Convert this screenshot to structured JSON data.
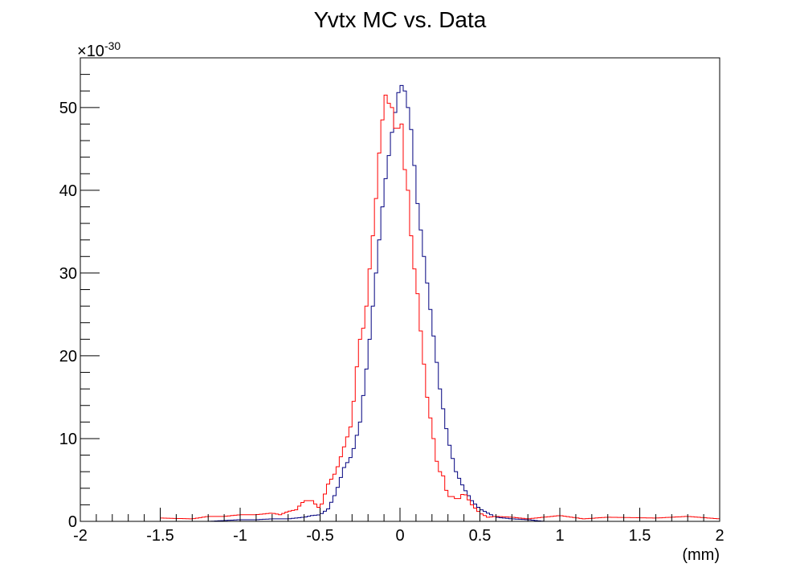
{
  "chart_data": {
    "type": "line",
    "title": "Yvtx MC vs. Data",
    "xlabel": "(mm)",
    "ylabel": "",
    "y_multiplier": "10",
    "y_multiplier_exp": "-30",
    "xlim": [
      -2,
      2
    ],
    "ylim": [
      0,
      56
    ],
    "grid": false,
    "x_ticks": [
      -2,
      -1.5,
      -1,
      -0.5,
      0,
      0.5,
      1,
      1.5,
      2
    ],
    "x_tick_labels": [
      "-2",
      "-1.5",
      "-1",
      "-0.5",
      "0",
      "0.5",
      "1",
      "1.5",
      "2"
    ],
    "y_ticks": [
      0,
      10,
      20,
      30,
      40,
      50
    ],
    "y_tick_labels": [
      "0",
      "10",
      "20",
      "30",
      "40",
      "50"
    ],
    "bin_width": 0.02,
    "series": [
      {
        "color": "#00007f",
        "x": [
          -1.2,
          -1.1,
          -1.0,
          -0.9,
          -0.8,
          -0.7,
          -0.65,
          -0.6,
          -0.55,
          -0.5,
          -0.45,
          -0.4,
          -0.35,
          -0.3,
          -0.25,
          -0.2,
          -0.15,
          -0.1,
          -0.05,
          0.0,
          0.03,
          0.05,
          0.08,
          0.1,
          0.15,
          0.2,
          0.25,
          0.3,
          0.35,
          0.4,
          0.45,
          0.5,
          0.55,
          0.6,
          0.7,
          0.8,
          0.9
        ],
        "values": [
          0,
          0.1,
          0.2,
          0.2,
          0.3,
          0.3,
          0.4,
          0.5,
          0.7,
          0.8,
          1.5,
          3.5,
          6.5,
          8,
          12,
          20,
          30,
          40,
          47,
          53,
          52,
          50,
          46,
          40,
          32,
          24,
          16,
          10,
          6,
          4,
          2.5,
          1.5,
          1,
          0.5,
          0.3,
          0.2,
          0
        ]
      },
      {
        "color": "#ff0000",
        "x": [
          -1.5,
          -1.3,
          -1.2,
          -1.1,
          -1.0,
          -0.9,
          -0.8,
          -0.75,
          -0.7,
          -0.65,
          -0.6,
          -0.55,
          -0.5,
          -0.45,
          -0.4,
          -0.35,
          -0.3,
          -0.28,
          -0.25,
          -0.22,
          -0.2,
          -0.18,
          -0.16,
          -0.14,
          -0.12,
          -0.1,
          -0.08,
          -0.06,
          -0.04,
          -0.02,
          0.0,
          0.02,
          0.04,
          0.06,
          0.08,
          0.1,
          0.12,
          0.14,
          0.16,
          0.18,
          0.2,
          0.22,
          0.24,
          0.26,
          0.28,
          0.3,
          0.32,
          0.34,
          0.36,
          0.4,
          0.45,
          0.5,
          0.55,
          0.6,
          0.7,
          0.8,
          1.0,
          1.15,
          1.3,
          1.6,
          1.8,
          2.0
        ],
        "values": [
          0.4,
          0.3,
          0.6,
          0.6,
          0.8,
          0.8,
          1.0,
          0.8,
          1.2,
          1.4,
          2.5,
          2.5,
          1.5,
          4.5,
          6,
          9,
          12,
          17,
          22,
          24,
          28,
          33,
          36,
          42,
          47,
          50,
          53,
          48,
          52,
          43,
          52,
          44,
          41,
          39,
          30,
          31,
          24,
          22,
          16,
          14,
          11,
          9,
          5.5,
          6.5,
          4.5,
          3,
          3,
          3,
          2.5,
          3.5,
          2,
          1,
          0.5,
          0.6,
          0.5,
          0.3,
          0.7,
          0.3,
          0.5,
          0.4,
          0.6,
          0.3
        ]
      }
    ]
  }
}
